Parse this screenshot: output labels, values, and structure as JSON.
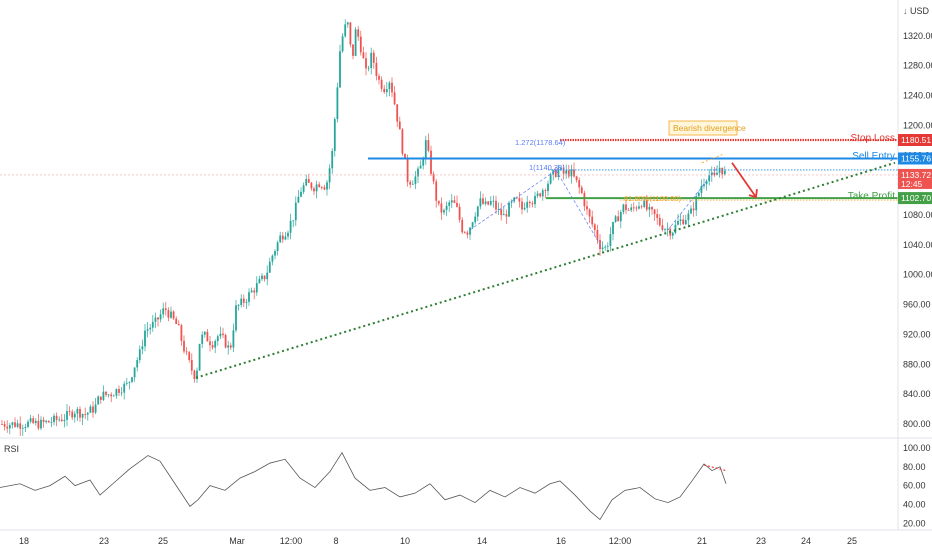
{
  "header": {
    "unit_label": "USD",
    "unit_sep": "↓"
  },
  "colors": {
    "up": "#26a69a",
    "down": "#ef5350",
    "stop": "#e53935",
    "entry": "#1e88e5",
    "profit": "#43a047",
    "trend": "#2e7d32",
    "fib": "#5c7cfa",
    "divergence": "#f5a623",
    "current_line": "#f4a6a6",
    "rsi_line": "#555555",
    "grid": "#e0e3eb"
  },
  "annotations": {
    "bearish_divergence": "Bearish divergence",
    "fib_ext": "1.272(1178.64)",
    "fib_one": "1(1140.38)",
    "fib_618": "61.80%(1100.00)"
  },
  "chart_data": [
    {
      "type": "line",
      "subtype": "candlestick",
      "y_ticks": [
        800,
        840,
        880,
        920,
        960,
        1000,
        1040,
        1080,
        1120,
        1160,
        1200,
        1240,
        1280,
        1320
      ],
      "y_tick_labels": [
        "800.00",
        "840.00",
        "880.00",
        "920.00",
        "960.00",
        "1000.00",
        "1040.00",
        "1080.00",
        "1120.00",
        "1160.00",
        "1200.00",
        "1240.00",
        "1280.00",
        "1320.00"
      ],
      "ylim": [
        792,
        1352
      ],
      "x_tick_labels": [
        "18",
        "23",
        "25",
        "Mar",
        "12:00",
        "8",
        "10",
        "14",
        "16",
        "12:00",
        "21",
        "23",
        "24",
        "25"
      ],
      "price_path": [
        {
          "x": 0,
          "y": 800
        },
        {
          "x": 22,
          "y": 800
        },
        {
          "x": 30,
          "y": 801
        },
        {
          "x": 40,
          "y": 800
        },
        {
          "x": 55,
          "y": 805
        },
        {
          "x": 65,
          "y": 809
        },
        {
          "x": 75,
          "y": 818
        },
        {
          "x": 85,
          "y": 813
        },
        {
          "x": 95,
          "y": 822
        },
        {
          "x": 100,
          "y": 838
        },
        {
          "x": 110,
          "y": 840
        },
        {
          "x": 120,
          "y": 848
        },
        {
          "x": 128,
          "y": 853
        },
        {
          "x": 135,
          "y": 880
        },
        {
          "x": 140,
          "y": 895
        },
        {
          "x": 145,
          "y": 925
        },
        {
          "x": 150,
          "y": 930
        },
        {
          "x": 155,
          "y": 935
        },
        {
          "x": 165,
          "y": 955
        },
        {
          "x": 172,
          "y": 942
        },
        {
          "x": 178,
          "y": 930
        },
        {
          "x": 183,
          "y": 905
        },
        {
          "x": 188,
          "y": 885
        },
        {
          "x": 192,
          "y": 872
        },
        {
          "x": 196,
          "y": 862
        },
        {
          "x": 200,
          "y": 915
        },
        {
          "x": 205,
          "y": 918
        },
        {
          "x": 212,
          "y": 908
        },
        {
          "x": 218,
          "y": 918
        },
        {
          "x": 224,
          "y": 912
        },
        {
          "x": 230,
          "y": 898
        },
        {
          "x": 236,
          "y": 955
        },
        {
          "x": 244,
          "y": 965
        },
        {
          "x": 252,
          "y": 978
        },
        {
          "x": 260,
          "y": 990
        },
        {
          "x": 266,
          "y": 1000
        },
        {
          "x": 272,
          "y": 1025
        },
        {
          "x": 280,
          "y": 1050
        },
        {
          "x": 288,
          "y": 1062
        },
        {
          "x": 294,
          "y": 1080
        },
        {
          "x": 300,
          "y": 1112
        },
        {
          "x": 306,
          "y": 1122
        },
        {
          "x": 314,
          "y": 1118
        },
        {
          "x": 320,
          "y": 1124
        },
        {
          "x": 326,
          "y": 1118
        },
        {
          "x": 332,
          "y": 1160
        },
        {
          "x": 336,
          "y": 1230
        },
        {
          "x": 340,
          "y": 1300
        },
        {
          "x": 344,
          "y": 1330
        },
        {
          "x": 348,
          "y": 1335
        },
        {
          "x": 352,
          "y": 1285
        },
        {
          "x": 356,
          "y": 1330
        },
        {
          "x": 360,
          "y": 1310
        },
        {
          "x": 366,
          "y": 1270
        },
        {
          "x": 372,
          "y": 1295
        },
        {
          "x": 378,
          "y": 1262
        },
        {
          "x": 384,
          "y": 1250
        },
        {
          "x": 390,
          "y": 1262
        },
        {
          "x": 396,
          "y": 1220
        },
        {
          "x": 402,
          "y": 1172
        },
        {
          "x": 408,
          "y": 1125
        },
        {
          "x": 414,
          "y": 1128
        },
        {
          "x": 420,
          "y": 1140
        },
        {
          "x": 426,
          "y": 1178
        },
        {
          "x": 432,
          "y": 1132
        },
        {
          "x": 438,
          "y": 1090
        },
        {
          "x": 444,
          "y": 1083
        },
        {
          "x": 450,
          "y": 1098
        },
        {
          "x": 456,
          "y": 1092
        },
        {
          "x": 462,
          "y": 1062
        },
        {
          "x": 468,
          "y": 1058
        },
        {
          "x": 474,
          "y": 1080
        },
        {
          "x": 480,
          "y": 1098
        },
        {
          "x": 486,
          "y": 1092
        },
        {
          "x": 492,
          "y": 1098
        },
        {
          "x": 498,
          "y": 1085
        },
        {
          "x": 504,
          "y": 1078
        },
        {
          "x": 510,
          "y": 1092
        },
        {
          "x": 516,
          "y": 1100
        },
        {
          "x": 522,
          "y": 1088
        },
        {
          "x": 528,
          "y": 1105
        },
        {
          "x": 534,
          "y": 1098
        },
        {
          "x": 540,
          "y": 1110
        },
        {
          "x": 546,
          "y": 1120
        },
        {
          "x": 552,
          "y": 1132
        },
        {
          "x": 558,
          "y": 1140
        },
        {
          "x": 564,
          "y": 1135
        },
        {
          "x": 570,
          "y": 1138
        },
        {
          "x": 576,
          "y": 1125
        },
        {
          "x": 582,
          "y": 1108
        },
        {
          "x": 588,
          "y": 1080
        },
        {
          "x": 594,
          "y": 1062
        },
        {
          "x": 600,
          "y": 1040
        },
        {
          "x": 606,
          "y": 1035
        },
        {
          "x": 612,
          "y": 1062
        },
        {
          "x": 618,
          "y": 1078
        },
        {
          "x": 624,
          "y": 1092
        },
        {
          "x": 630,
          "y": 1085
        },
        {
          "x": 636,
          "y": 1092
        },
        {
          "x": 642,
          "y": 1098
        },
        {
          "x": 648,
          "y": 1085
        },
        {
          "x": 654,
          "y": 1080
        },
        {
          "x": 660,
          "y": 1068
        },
        {
          "x": 666,
          "y": 1062
        },
        {
          "x": 672,
          "y": 1058
        },
        {
          "x": 678,
          "y": 1070
        },
        {
          "x": 684,
          "y": 1075
        },
        {
          "x": 690,
          "y": 1080
        },
        {
          "x": 696,
          "y": 1100
        },
        {
          "x": 702,
          "y": 1122
        },
        {
          "x": 708,
          "y": 1135
        },
        {
          "x": 714,
          "y": 1128
        },
        {
          "x": 720,
          "y": 1145
        },
        {
          "x": 726,
          "y": 1133
        }
      ],
      "levels": [
        {
          "name": "Stop Loss",
          "value": 1180.51,
          "label": "1180.51",
          "color_key": "stop",
          "x_start": 560
        },
        {
          "name": "Sell Entry",
          "value": 1155.76,
          "label": "1155.76",
          "color_key": "entry",
          "x_start": 368
        },
        {
          "name": "Take Profit",
          "value": 1102.7,
          "label": "1102.70",
          "color_key": "profit",
          "x_start": 546
        }
      ],
      "current_price": {
        "value": 1133.72,
        "label": "1133.72",
        "countdown": "12:45"
      },
      "trendline": {
        "x1": 196,
        "y1": 862,
        "x2": 895,
        "y2": 1150
      },
      "fib_lines": [
        {
          "value": 1140.38,
          "x_start": 548
        },
        {
          "value": 1100.0,
          "x_start": 620
        }
      ],
      "projection": {
        "x1": 732,
        "y1": 1150,
        "x2": 756,
        "y2": 1104
      }
    },
    {
      "type": "line",
      "title": "RSI",
      "ylim": [
        15,
        100
      ],
      "y_ticks": [
        20,
        40,
        60,
        80,
        100
      ],
      "y_tick_labels": [
        "20.00",
        "40.00",
        "60.00",
        "80.00",
        "100.00"
      ],
      "series": [
        {
          "x": 0,
          "y": 58
        },
        {
          "x": 20,
          "y": 62
        },
        {
          "x": 35,
          "y": 55
        },
        {
          "x": 50,
          "y": 60
        },
        {
          "x": 65,
          "y": 70
        },
        {
          "x": 75,
          "y": 60
        },
        {
          "x": 90,
          "y": 66
        },
        {
          "x": 100,
          "y": 50
        },
        {
          "x": 115,
          "y": 64
        },
        {
          "x": 130,
          "y": 78
        },
        {
          "x": 148,
          "y": 92
        },
        {
          "x": 160,
          "y": 86
        },
        {
          "x": 175,
          "y": 62
        },
        {
          "x": 190,
          "y": 38
        },
        {
          "x": 198,
          "y": 45
        },
        {
          "x": 210,
          "y": 60
        },
        {
          "x": 225,
          "y": 55
        },
        {
          "x": 240,
          "y": 68
        },
        {
          "x": 255,
          "y": 75
        },
        {
          "x": 270,
          "y": 84
        },
        {
          "x": 285,
          "y": 88
        },
        {
          "x": 300,
          "y": 68
        },
        {
          "x": 315,
          "y": 58
        },
        {
          "x": 330,
          "y": 75
        },
        {
          "x": 342,
          "y": 95
        },
        {
          "x": 355,
          "y": 68
        },
        {
          "x": 370,
          "y": 55
        },
        {
          "x": 385,
          "y": 58
        },
        {
          "x": 400,
          "y": 48
        },
        {
          "x": 415,
          "y": 52
        },
        {
          "x": 430,
          "y": 62
        },
        {
          "x": 445,
          "y": 45
        },
        {
          "x": 460,
          "y": 50
        },
        {
          "x": 475,
          "y": 42
        },
        {
          "x": 490,
          "y": 55
        },
        {
          "x": 505,
          "y": 48
        },
        {
          "x": 520,
          "y": 58
        },
        {
          "x": 535,
          "y": 52
        },
        {
          "x": 550,
          "y": 62
        },
        {
          "x": 560,
          "y": 65
        },
        {
          "x": 575,
          "y": 50
        },
        {
          "x": 590,
          "y": 33
        },
        {
          "x": 600,
          "y": 24
        },
        {
          "x": 612,
          "y": 45
        },
        {
          "x": 625,
          "y": 55
        },
        {
          "x": 640,
          "y": 58
        },
        {
          "x": 655,
          "y": 46
        },
        {
          "x": 668,
          "y": 42
        },
        {
          "x": 680,
          "y": 48
        },
        {
          "x": 692,
          "y": 65
        },
        {
          "x": 704,
          "y": 83
        },
        {
          "x": 712,
          "y": 76
        },
        {
          "x": 720,
          "y": 80
        },
        {
          "x": 726,
          "y": 62
        }
      ],
      "divergence": {
        "x1": 704,
        "y1": 82,
        "x2": 726,
        "y2": 76
      }
    }
  ]
}
